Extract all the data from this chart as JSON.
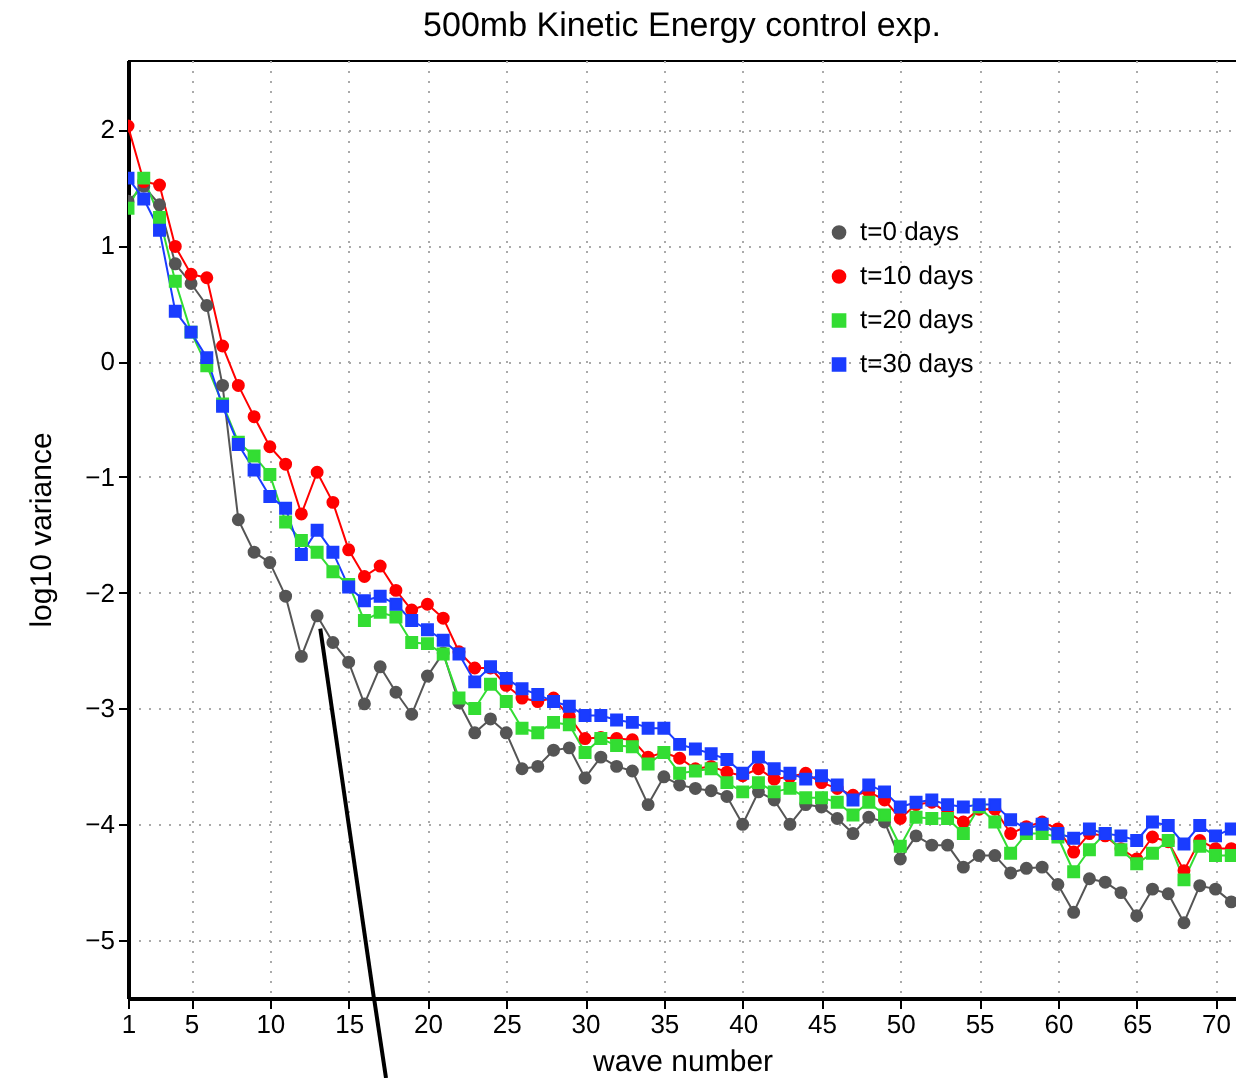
{
  "chart_data": {
    "type": "line",
    "title": "500mb Kinetic Energy control exp.",
    "xlabel": "wave number",
    "ylabel": "log10 variance",
    "x": [
      1,
      2,
      3,
      4,
      5,
      6,
      7,
      8,
      9,
      10,
      11,
      12,
      13,
      14,
      15,
      16,
      17,
      18,
      19,
      20,
      21,
      22,
      23,
      24,
      25,
      26,
      27,
      28,
      29,
      30,
      31,
      32,
      33,
      34,
      35,
      36,
      37,
      38,
      39,
      40,
      41,
      42,
      43,
      44,
      45,
      46,
      47,
      48,
      49,
      50,
      51,
      52,
      53,
      54,
      55,
      56,
      57,
      58,
      59,
      60,
      61,
      62,
      63,
      64,
      65,
      66,
      67,
      68,
      69,
      70,
      71
    ],
    "xlim": [
      1,
      71.3
    ],
    "xticks": [
      1,
      5,
      10,
      15,
      20,
      25,
      30,
      35,
      40,
      45,
      50,
      55,
      60,
      65,
      70
    ],
    "ylim": [
      -5.5,
      2.6
    ],
    "yticks": [
      -5,
      -4,
      -3,
      -2,
      -1,
      0,
      1,
      2
    ],
    "grid": true,
    "legend": "top right",
    "line_style": "solid",
    "series": [
      {
        "name": "t=0  days",
        "color": "#555555",
        "marker": "circle",
        "values": [
          1.38,
          1.51,
          1.35,
          0.84,
          0.67,
          0.48,
          -0.21,
          -1.37,
          -1.65,
          -1.74,
          -2.03,
          -2.55,
          -2.2,
          -2.43,
          -2.6,
          -2.96,
          -2.64,
          -2.86,
          -3.05,
          -2.72,
          -2.52,
          -2.95,
          -3.21,
          -3.09,
          -3.21,
          -3.52,
          -3.5,
          -3.36,
          -3.34,
          -3.6,
          -3.42,
          -3.5,
          -3.54,
          -3.83,
          -3.59,
          -3.66,
          -3.69,
          -3.71,
          -3.76,
          -4.0,
          -3.72,
          -3.79,
          -4.0,
          -3.83,
          -3.85,
          -3.95,
          -4.08,
          -3.94,
          -3.98,
          -4.3,
          -4.1,
          -4.18,
          -4.18,
          -4.37,
          -4.27,
          -4.27,
          -4.42,
          -4.38,
          -4.37,
          -4.52,
          -4.76,
          -4.47,
          -4.5,
          -4.59,
          -4.79,
          -4.56,
          -4.6,
          -4.85,
          -4.53,
          -4.56,
          -4.67
        ]
      },
      {
        "name": "t=10  days",
        "color": "#ff0000",
        "marker": "circle",
        "values": [
          2.03,
          1.55,
          1.52,
          0.99,
          0.75,
          0.72,
          0.13,
          -0.21,
          -0.48,
          -0.74,
          -0.89,
          -1.32,
          -0.96,
          -1.22,
          -1.63,
          -1.86,
          -1.77,
          -1.98,
          -2.15,
          -2.1,
          -2.22,
          -2.51,
          -2.65,
          -2.65,
          -2.8,
          -2.91,
          -2.94,
          -2.91,
          -3.07,
          -3.26,
          -3.25,
          -3.26,
          -3.27,
          -3.42,
          -3.38,
          -3.43,
          -3.52,
          -3.5,
          -3.55,
          -3.58,
          -3.52,
          -3.61,
          -3.59,
          -3.56,
          -3.64,
          -3.69,
          -3.75,
          -3.72,
          -3.79,
          -3.95,
          -3.83,
          -3.81,
          -3.9,
          -3.98,
          -3.87,
          -3.87,
          -4.08,
          -4.02,
          -3.98,
          -4.04,
          -4.24,
          -4.08,
          -4.1,
          -4.21,
          -4.3,
          -4.11,
          -4.15,
          -4.4,
          -4.14,
          -4.21,
          -4.21
        ]
      },
      {
        "name": "t=20  days",
        "color": "#33dd33",
        "marker": "square",
        "values": [
          1.32,
          1.58,
          1.24,
          0.69,
          0.25,
          -0.04,
          -0.37,
          -0.7,
          -0.82,
          -0.98,
          -1.39,
          -1.55,
          -1.65,
          -1.82,
          -1.93,
          -2.24,
          -2.17,
          -2.21,
          -2.43,
          -2.44,
          -2.53,
          -2.91,
          -3.0,
          -2.79,
          -2.94,
          -3.17,
          -3.21,
          -3.12,
          -3.14,
          -3.38,
          -3.26,
          -3.32,
          -3.33,
          -3.48,
          -3.38,
          -3.56,
          -3.54,
          -3.52,
          -3.64,
          -3.72,
          -3.64,
          -3.72,
          -3.69,
          -3.77,
          -3.77,
          -3.81,
          -3.92,
          -3.81,
          -3.92,
          -4.19,
          -3.94,
          -3.95,
          -3.95,
          -4.08,
          -3.85,
          -3.98,
          -4.25,
          -4.08,
          -4.08,
          -4.11,
          -4.41,
          -4.22,
          -4.08,
          -4.22,
          -4.34,
          -4.25,
          -4.14,
          -4.48,
          -4.19,
          -4.27,
          -4.27
        ]
      },
      {
        "name": "t=30  days",
        "color": "#1a3cff",
        "marker": "square",
        "values": [
          1.58,
          1.4,
          1.13,
          0.43,
          0.25,
          0.03,
          -0.39,
          -0.72,
          -0.94,
          -1.17,
          -1.27,
          -1.67,
          -1.46,
          -1.65,
          -1.95,
          -2.07,
          -2.03,
          -2.1,
          -2.24,
          -2.32,
          -2.41,
          -2.53,
          -2.77,
          -2.64,
          -2.74,
          -2.83,
          -2.88,
          -2.94,
          -2.98,
          -3.06,
          -3.06,
          -3.1,
          -3.12,
          -3.17,
          -3.17,
          -3.31,
          -3.35,
          -3.39,
          -3.44,
          -3.56,
          -3.42,
          -3.52,
          -3.56,
          -3.61,
          -3.58,
          -3.66,
          -3.79,
          -3.66,
          -3.72,
          -3.85,
          -3.81,
          -3.79,
          -3.83,
          -3.85,
          -3.83,
          -3.83,
          -3.96,
          -4.04,
          -4.0,
          -4.08,
          -4.12,
          -4.04,
          -4.08,
          -4.1,
          -4.14,
          -3.98,
          -4.01,
          -4.17,
          -4.01,
          -4.1,
          -4.04
        ]
      },
      {
        "type": "line",
        "color": "#000000",
        "marker": "none",
        "x": [
          13.2,
          16.6
        ],
        "values": [
          -2.31,
          -5.5
        ]
      }
    ]
  }
}
